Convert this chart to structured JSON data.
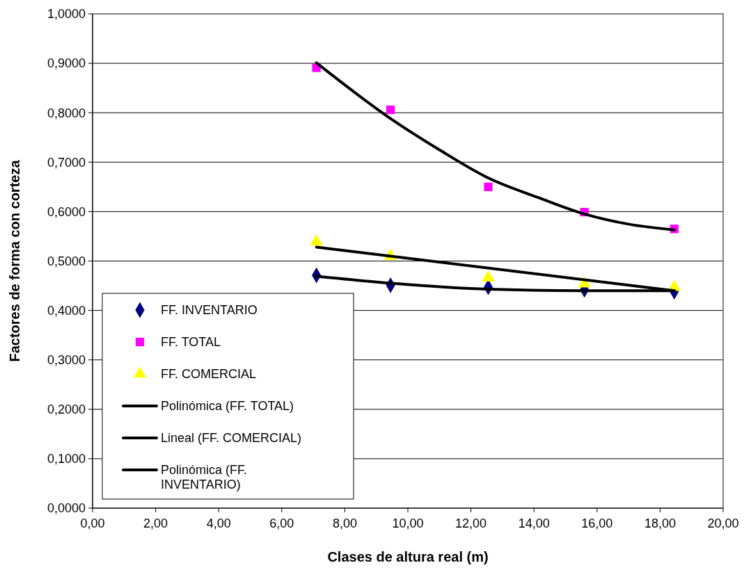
{
  "chart_data": {
    "type": "scatter",
    "xlabel": "Clases de altura real (m)",
    "ylabel": "Factores de forma con corteza",
    "xlim": [
      0,
      20
    ],
    "ylim": [
      0,
      1
    ],
    "xticks": [
      {
        "value": 0,
        "label": "0,00"
      },
      {
        "value": 2,
        "label": "2,00"
      },
      {
        "value": 4,
        "label": "4,00"
      },
      {
        "value": 6,
        "label": "6,00"
      },
      {
        "value": 8,
        "label": "8,00"
      },
      {
        "value": 10,
        "label": "10,00"
      },
      {
        "value": 12,
        "label": "12,00"
      },
      {
        "value": 14,
        "label": "14,00"
      },
      {
        "value": 16,
        "label": "16,00"
      },
      {
        "value": 18,
        "label": "18,00"
      },
      {
        "value": 20,
        "label": "20,00"
      }
    ],
    "yticks": [
      {
        "value": 0,
        "label": "0,0000"
      },
      {
        "value": 0.1,
        "label": "0,1000"
      },
      {
        "value": 0.2,
        "label": "0,2000"
      },
      {
        "value": 0.3,
        "label": "0,3000"
      },
      {
        "value": 0.4,
        "label": "0,4000"
      },
      {
        "value": 0.5,
        "label": "0,5000"
      },
      {
        "value": 0.6,
        "label": "0,6000"
      },
      {
        "value": 0.7,
        "label": "0,7000"
      },
      {
        "value": 0.8,
        "label": "0,8000"
      },
      {
        "value": 0.9,
        "label": "0,9000"
      },
      {
        "value": 1,
        "label": "1,0000"
      }
    ],
    "grid": "y",
    "legend": "bottom left",
    "series": [
      {
        "name": "FF. INVENTARIO",
        "marker": "diamond",
        "color": "#000080",
        "x": [
          7.1,
          9.45,
          12.55,
          15.6,
          18.45
        ],
        "values": [
          0.471,
          0.451,
          0.447,
          0.442,
          0.438
        ]
      },
      {
        "name": "FF. TOTAL",
        "marker": "square",
        "color": "#ff00ff",
        "x": [
          7.1,
          9.45,
          12.55,
          15.6,
          18.45
        ],
        "values": [
          0.891,
          0.806,
          0.65,
          0.599,
          0.565
        ]
      },
      {
        "name": "FF. COMERCIAL",
        "marker": "triangle",
        "color": "#ffff00",
        "x": [
          7.1,
          9.45,
          12.55,
          15.6,
          18.45
        ],
        "values": [
          0.539,
          0.51,
          0.466,
          0.454,
          0.447
        ]
      },
      {
        "name": "Polinómica (FF. TOTAL)",
        "type": "line",
        "marker": "none",
        "line_style": "solid",
        "color": "#000000",
        "x": [
          7.1,
          9.5,
          11.0,
          12.55,
          14.15,
          15.6,
          17.05,
          18.45
        ],
        "values": [
          0.901,
          0.786,
          0.725,
          0.668,
          0.628,
          0.595,
          0.574,
          0.563
        ]
      },
      {
        "name": "Lineal (FF. COMERCIAL)",
        "type": "line",
        "marker": "none",
        "line_style": "solid",
        "color": "#000000",
        "x": [
          7.1,
          18.45
        ],
        "values": [
          0.528,
          0.44
        ]
      },
      {
        "name": "Polinómica (FF. INVENTARIO)",
        "type": "line",
        "marker": "none",
        "line_style": "solid",
        "color": "#000000",
        "x": [
          7.1,
          9.5,
          12.55,
          15.6,
          18.45
        ],
        "values": [
          0.469,
          0.455,
          0.443,
          0.44,
          0.44
        ]
      }
    ]
  }
}
